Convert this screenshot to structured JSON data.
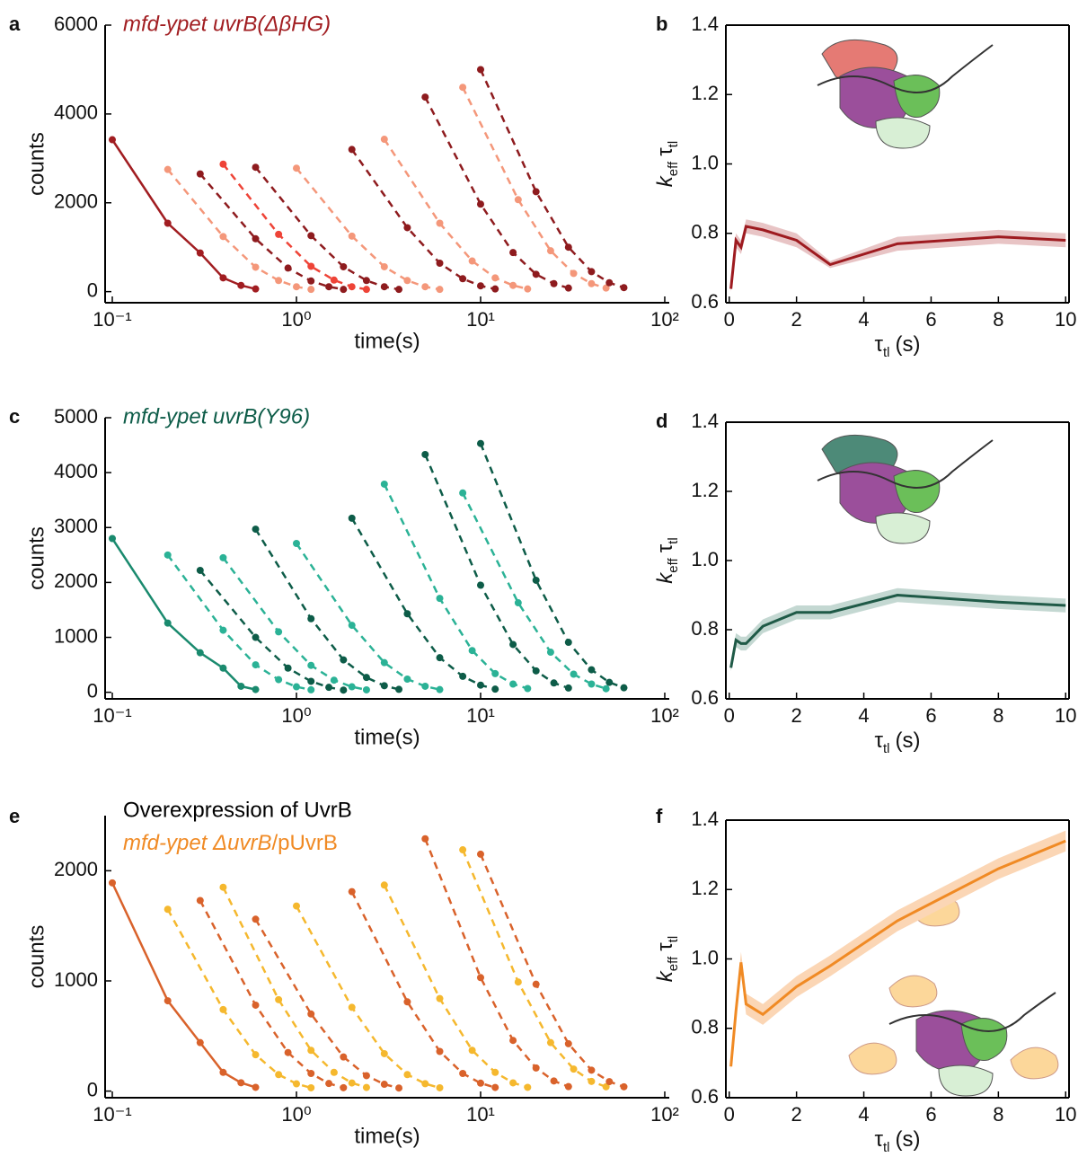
{
  "chart_data": [
    {
      "type": "line",
      "label": "a",
      "title": "mfd-ypet uvrB(ΔβHG)",
      "title_color": "#a11d21",
      "xlabel": "time(s)",
      "ylabel": "counts",
      "xscale": "log",
      "xlim": [
        0.0914,
        105.8
      ],
      "ylim": [
        -250,
        6000
      ],
      "xticks": [
        {
          "value": 0.1,
          "label": "10⁻¹"
        },
        {
          "value": 1,
          "label": "10⁰"
        },
        {
          "value": 10,
          "label": "10¹"
        },
        {
          "value": 100,
          "label": "10²"
        }
      ],
      "yticks": [
        0,
        2000,
        4000,
        6000
      ],
      "series": [
        {
          "color": "#a11d21",
          "style": "solid",
          "x": [
            0.1,
            0.2,
            0.3,
            0.4,
            0.5,
            0.6
          ],
          "values": [
            3420,
            1540,
            870,
            310,
            140,
            60
          ]
        },
        {
          "color": "#f4977a",
          "style": "dashed",
          "x": [
            0.2,
            0.4,
            0.6,
            0.8,
            1,
            1.2
          ],
          "values": [
            2750,
            1240,
            550,
            250,
            110,
            50
          ]
        },
        {
          "color": "#8e1b1e",
          "style": "dashed",
          "x": [
            0.3,
            0.6,
            0.9,
            1.2,
            1.5,
            1.8
          ],
          "values": [
            2650,
            1190,
            530,
            240,
            110,
            50
          ]
        },
        {
          "color": "#ee4337",
          "style": "dashed",
          "x": [
            0.4,
            0.8,
            1.2,
            1.6,
            2,
            2.4
          ],
          "values": [
            2870,
            1290,
            570,
            260,
            110,
            50
          ]
        },
        {
          "color": "#8e1b1e",
          "style": "dashed",
          "x": [
            0.6,
            1.2,
            1.8,
            2.4,
            3,
            3.6
          ],
          "values": [
            2800,
            1260,
            560,
            250,
            110,
            50
          ]
        },
        {
          "color": "#f4977a",
          "style": "dashed",
          "x": [
            1,
            2,
            3,
            4,
            5,
            6
          ],
          "values": [
            2780,
            1250,
            560,
            250,
            110,
            50
          ]
        },
        {
          "color": "#8e1b1e",
          "style": "dashed",
          "x": [
            2,
            4,
            6,
            8,
            10,
            12
          ],
          "values": [
            3200,
            1440,
            640,
            290,
            130,
            60
          ]
        },
        {
          "color": "#f4977a",
          "style": "dashed",
          "x": [
            3,
            6,
            9,
            12,
            15,
            18
          ],
          "values": [
            3430,
            1540,
            690,
            310,
            140,
            60
          ]
        },
        {
          "color": "#8e1b1e",
          "style": "dashed",
          "x": [
            5,
            10,
            15,
            20,
            25,
            30
          ],
          "values": [
            4380,
            1970,
            880,
            390,
            180,
            80
          ]
        },
        {
          "color": "#f4977a",
          "style": "dashed",
          "x": [
            8,
            16,
            24,
            32,
            40,
            48
          ],
          "values": [
            4600,
            2070,
            920,
            410,
            180,
            80
          ]
        },
        {
          "color": "#8e1b1e",
          "style": "dashed",
          "x": [
            10,
            20,
            30,
            40,
            50,
            60
          ],
          "values": [
            5000,
            2250,
            1000,
            450,
            200,
            90
          ]
        }
      ]
    },
    {
      "type": "line",
      "label": "b",
      "xlabel": [
        "τ",
        "tl",
        "(s)"
      ],
      "ylabel": [
        "k",
        "eff",
        "τ",
        "tl"
      ],
      "xlim": [
        -0.1,
        10.1
      ],
      "ylim": [
        0.6,
        1.4
      ],
      "xticks": [
        0,
        2,
        4,
        6,
        8,
        10
      ],
      "yticks": [
        0.6,
        0.8,
        {
          "value": 1,
          "label": "1.0"
        },
        1.2,
        1.4
      ],
      "series": [
        {
          "color": "#9e1b20",
          "band_color": "#e8c4c5",
          "x": [
            0.05,
            0.2,
            0.35,
            0.5,
            1,
            2,
            3,
            5,
            8,
            10
          ],
          "values": [
            0.64,
            0.78,
            0.76,
            0.82,
            0.81,
            0.78,
            0.71,
            0.77,
            0.79,
            0.78
          ],
          "lower": [
            0.63,
            0.76,
            0.74,
            0.8,
            0.79,
            0.76,
            0.7,
            0.75,
            0.77,
            0.76
          ],
          "upper": [
            0.65,
            0.8,
            0.78,
            0.84,
            0.83,
            0.8,
            0.72,
            0.79,
            0.81,
            0.8
          ]
        }
      ]
    },
    {
      "type": "line",
      "label": "c",
      "title": "mfd-ypet uvrB(Y96)",
      "title_color": "#0d5c48",
      "xlabel": "time(s)",
      "ylabel": "counts",
      "xscale": "log",
      "xlim": [
        0.0914,
        105.8
      ],
      "ylim": [
        -120,
        5000
      ],
      "xticks": [
        {
          "value": 0.1,
          "label": "10⁻¹"
        },
        {
          "value": 1,
          "label": "10⁰"
        },
        {
          "value": 10,
          "label": "10¹"
        },
        {
          "value": 100,
          "label": "10²"
        }
      ],
      "yticks": [
        0,
        1000,
        2000,
        3000,
        4000,
        5000
      ],
      "series": [
        {
          "color": "#1a8a6e",
          "style": "solid",
          "x": [
            0.1,
            0.2,
            0.3,
            0.4,
            0.5,
            0.6
          ],
          "values": [
            2800,
            1260,
            720,
            440,
            110,
            50
          ]
        },
        {
          "color": "#2bb296",
          "style": "dashed",
          "x": [
            0.2,
            0.4,
            0.6,
            0.8,
            1,
            1.2
          ],
          "values": [
            2500,
            1130,
            500,
            230,
            100,
            45
          ]
        },
        {
          "color": "#0d5c48",
          "style": "dashed",
          "x": [
            0.3,
            0.6,
            0.9,
            1.2,
            1.5,
            1.8
          ],
          "values": [
            2220,
            1000,
            440,
            200,
            90,
            40
          ]
        },
        {
          "color": "#2bb296",
          "style": "dashed",
          "x": [
            0.4,
            0.8,
            1.2,
            1.6,
            2,
            2.4
          ],
          "values": [
            2450,
            1100,
            490,
            220,
            100,
            44
          ]
        },
        {
          "color": "#0d5c48",
          "style": "dashed",
          "x": [
            0.6,
            1.2,
            1.8,
            2.4,
            3,
            3.6
          ],
          "values": [
            2970,
            1340,
            590,
            270,
            120,
            53
          ]
        },
        {
          "color": "#2bb296",
          "style": "dashed",
          "x": [
            1,
            2,
            3,
            4,
            5,
            6
          ],
          "values": [
            2710,
            1220,
            540,
            240,
            110,
            49
          ]
        },
        {
          "color": "#0d5c48",
          "style": "dashed",
          "x": [
            2,
            4,
            6,
            8,
            10,
            12
          ],
          "values": [
            3170,
            1430,
            630,
            290,
            130,
            57
          ]
        },
        {
          "color": "#2bb296",
          "style": "dashed",
          "x": [
            3,
            6,
            9,
            12,
            15,
            18
          ],
          "values": [
            3790,
            1710,
            760,
            340,
            150,
            68
          ]
        },
        {
          "color": "#0d5c48",
          "style": "dashed",
          "x": [
            5,
            10,
            15,
            20,
            25,
            30
          ],
          "values": [
            4330,
            1950,
            870,
            390,
            170,
            78
          ]
        },
        {
          "color": "#2bb296",
          "style": "dashed",
          "x": [
            8,
            16,
            24,
            32,
            40,
            48
          ],
          "values": [
            3630,
            1630,
            730,
            330,
            150,
            65
          ]
        },
        {
          "color": "#0d5c48",
          "style": "dashed",
          "x": [
            10,
            20,
            30,
            40,
            50,
            60
          ],
          "values": [
            4530,
            2040,
            910,
            410,
            180,
            82
          ]
        }
      ]
    },
    {
      "type": "line",
      "label": "d",
      "xlabel": [
        "τ",
        "tl",
        "(s)"
      ],
      "ylabel": [
        "k",
        "eff",
        "τ",
        "tl"
      ],
      "xlim": [
        -0.1,
        10.1
      ],
      "ylim": [
        0.6,
        1.4
      ],
      "xticks": [
        0,
        2,
        4,
        6,
        8,
        10
      ],
      "yticks": [
        0.6,
        0.8,
        {
          "value": 1,
          "label": "1.0"
        },
        1.2,
        1.4
      ],
      "series": [
        {
          "color": "#1f5a47",
          "band_color": "#c4d8d2",
          "x": [
            0.05,
            0.2,
            0.35,
            0.5,
            1,
            2,
            3,
            5,
            8,
            10
          ],
          "values": [
            0.69,
            0.77,
            0.76,
            0.76,
            0.81,
            0.85,
            0.85,
            0.9,
            0.88,
            0.87
          ],
          "lower": [
            0.68,
            0.75,
            0.74,
            0.74,
            0.79,
            0.83,
            0.83,
            0.88,
            0.86,
            0.85
          ],
          "upper": [
            0.7,
            0.79,
            0.78,
            0.78,
            0.83,
            0.87,
            0.87,
            0.92,
            0.9,
            0.89
          ]
        }
      ]
    },
    {
      "type": "line",
      "label": "e",
      "title": "Overexpression of UvrB",
      "title_color": "#000000",
      "subtitle": [
        "mfd-ypet ΔuvrB",
        "/pUvrB"
      ],
      "subtitle_color": "#f08a24",
      "xlabel": "time(s)",
      "ylabel": "counts",
      "xscale": "log",
      "xlim": [
        0.0914,
        105.8
      ],
      "ylim": [
        -60,
        2500
      ],
      "xticks": [
        {
          "value": 0.1,
          "label": "10⁻¹"
        },
        {
          "value": 1,
          "label": "10⁰"
        },
        {
          "value": 10,
          "label": "10¹"
        },
        {
          "value": 100,
          "label": "10²"
        }
      ],
      "yticks": [
        0,
        1000,
        2000
      ],
      "series": [
        {
          "color": "#d9622b",
          "style": "solid",
          "x": [
            0.1,
            0.2,
            0.3,
            0.4,
            0.5,
            0.6
          ],
          "values": [
            1890,
            820,
            440,
            170,
            76,
            34
          ]
        },
        {
          "color": "#f5b82e",
          "style": "dashed",
          "x": [
            0.2,
            0.4,
            0.6,
            0.8,
            1,
            1.2
          ],
          "values": [
            1650,
            740,
            330,
            150,
            66,
            30
          ]
        },
        {
          "color": "#d9622b",
          "style": "dashed",
          "x": [
            0.3,
            0.6,
            0.9,
            1.2,
            1.5,
            1.8
          ],
          "values": [
            1730,
            780,
            350,
            160,
            69,
            31
          ]
        },
        {
          "color": "#f5b82e",
          "style": "dashed",
          "x": [
            0.4,
            0.8,
            1.2,
            1.6,
            2,
            2.4
          ],
          "values": [
            1850,
            830,
            370,
            170,
            74,
            33
          ]
        },
        {
          "color": "#d9622b",
          "style": "dashed",
          "x": [
            0.6,
            1.2,
            1.8,
            2.4,
            3,
            3.6
          ],
          "values": [
            1560,
            700,
            310,
            140,
            62,
            28
          ]
        },
        {
          "color": "#f5b82e",
          "style": "dashed",
          "x": [
            1,
            2,
            3,
            4,
            5,
            6
          ],
          "values": [
            1680,
            760,
            340,
            150,
            67,
            30
          ]
        },
        {
          "color": "#d9622b",
          "style": "dashed",
          "x": [
            2,
            4,
            6,
            8,
            10,
            12
          ],
          "values": [
            1810,
            810,
            360,
            160,
            72,
            33
          ]
        },
        {
          "color": "#f5b82e",
          "style": "dashed",
          "x": [
            3,
            6,
            9,
            12,
            15,
            18
          ],
          "values": [
            1870,
            840,
            370,
            170,
            75,
            34
          ]
        },
        {
          "color": "#d9622b",
          "style": "dashed",
          "x": [
            5,
            10,
            15,
            20,
            25,
            30
          ],
          "values": [
            2290,
            1030,
            460,
            210,
            92,
            41
          ]
        },
        {
          "color": "#f5b82e",
          "style": "dashed",
          "x": [
            8,
            16,
            24,
            32,
            40,
            48
          ],
          "values": [
            2190,
            990,
            440,
            200,
            88,
            39
          ]
        },
        {
          "color": "#d9622b",
          "style": "dashed",
          "x": [
            10,
            20,
            30,
            40,
            50,
            60
          ],
          "values": [
            2150,
            970,
            430,
            190,
            86,
            39
          ]
        }
      ]
    },
    {
      "type": "line",
      "label": "f",
      "xlabel": [
        "τ",
        "tl",
        "(s)"
      ],
      "ylabel": [
        "k",
        "eff",
        "τ",
        "tl"
      ],
      "xlim": [
        -0.1,
        10.1
      ],
      "ylim": [
        0.6,
        1.4
      ],
      "xticks": [
        0,
        2,
        4,
        6,
        8,
        10
      ],
      "yticks": [
        0.6,
        0.8,
        {
          "value": 1,
          "label": "1.0"
        },
        1.2,
        1.4
      ],
      "series": [
        {
          "color": "#f08a24",
          "band_color": "#fbd6b5",
          "x": [
            0.05,
            0.2,
            0.35,
            0.5,
            1,
            2,
            3,
            5,
            8,
            10
          ],
          "values": [
            0.69,
            0.85,
            0.99,
            0.87,
            0.84,
            0.92,
            0.98,
            1.11,
            1.26,
            1.34
          ],
          "lower": [
            0.68,
            0.83,
            0.96,
            0.84,
            0.81,
            0.89,
            0.95,
            1.08,
            1.23,
            1.31
          ],
          "upper": [
            0.7,
            0.87,
            1.02,
            0.9,
            0.87,
            0.95,
            1.01,
            1.14,
            1.29,
            1.37
          ]
        }
      ]
    }
  ]
}
